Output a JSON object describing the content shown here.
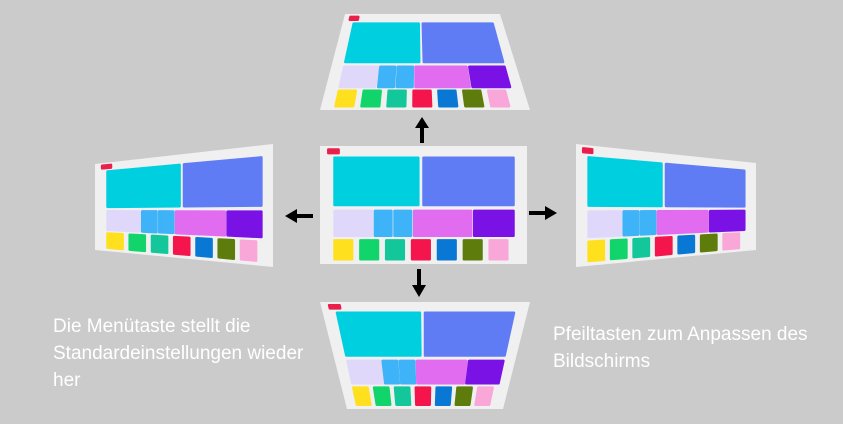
{
  "captions": {
    "menu_reset": "Die Menütaste stellt die Standardeinstellungen wieder her",
    "arrow_adjust": "Pfeiltasten zum Anpassen des Bildschirms"
  },
  "arrows": [
    "arrow-up-icon",
    "arrow-down-icon",
    "arrow-left-icon",
    "arrow-right-icon"
  ],
  "tile_colors": {
    "panel_bg": "#f0f0f0",
    "record_dot": "#ea1f4b",
    "cyan": "#00cfe0",
    "blue": "#5f7cf5",
    "lavender": "#e0d8fb",
    "sky_blue": "#3eb3f7",
    "pink_purple": "#e26cf0",
    "violet": "#7a12e6",
    "yellow": "#ffe01e",
    "green": "#11d46a",
    "teal": "#14c79a",
    "red": "#f3154c",
    "dark_blue": "#0878d4",
    "olive": "#5e7c0c",
    "light_pink": "#f9a6d8"
  }
}
